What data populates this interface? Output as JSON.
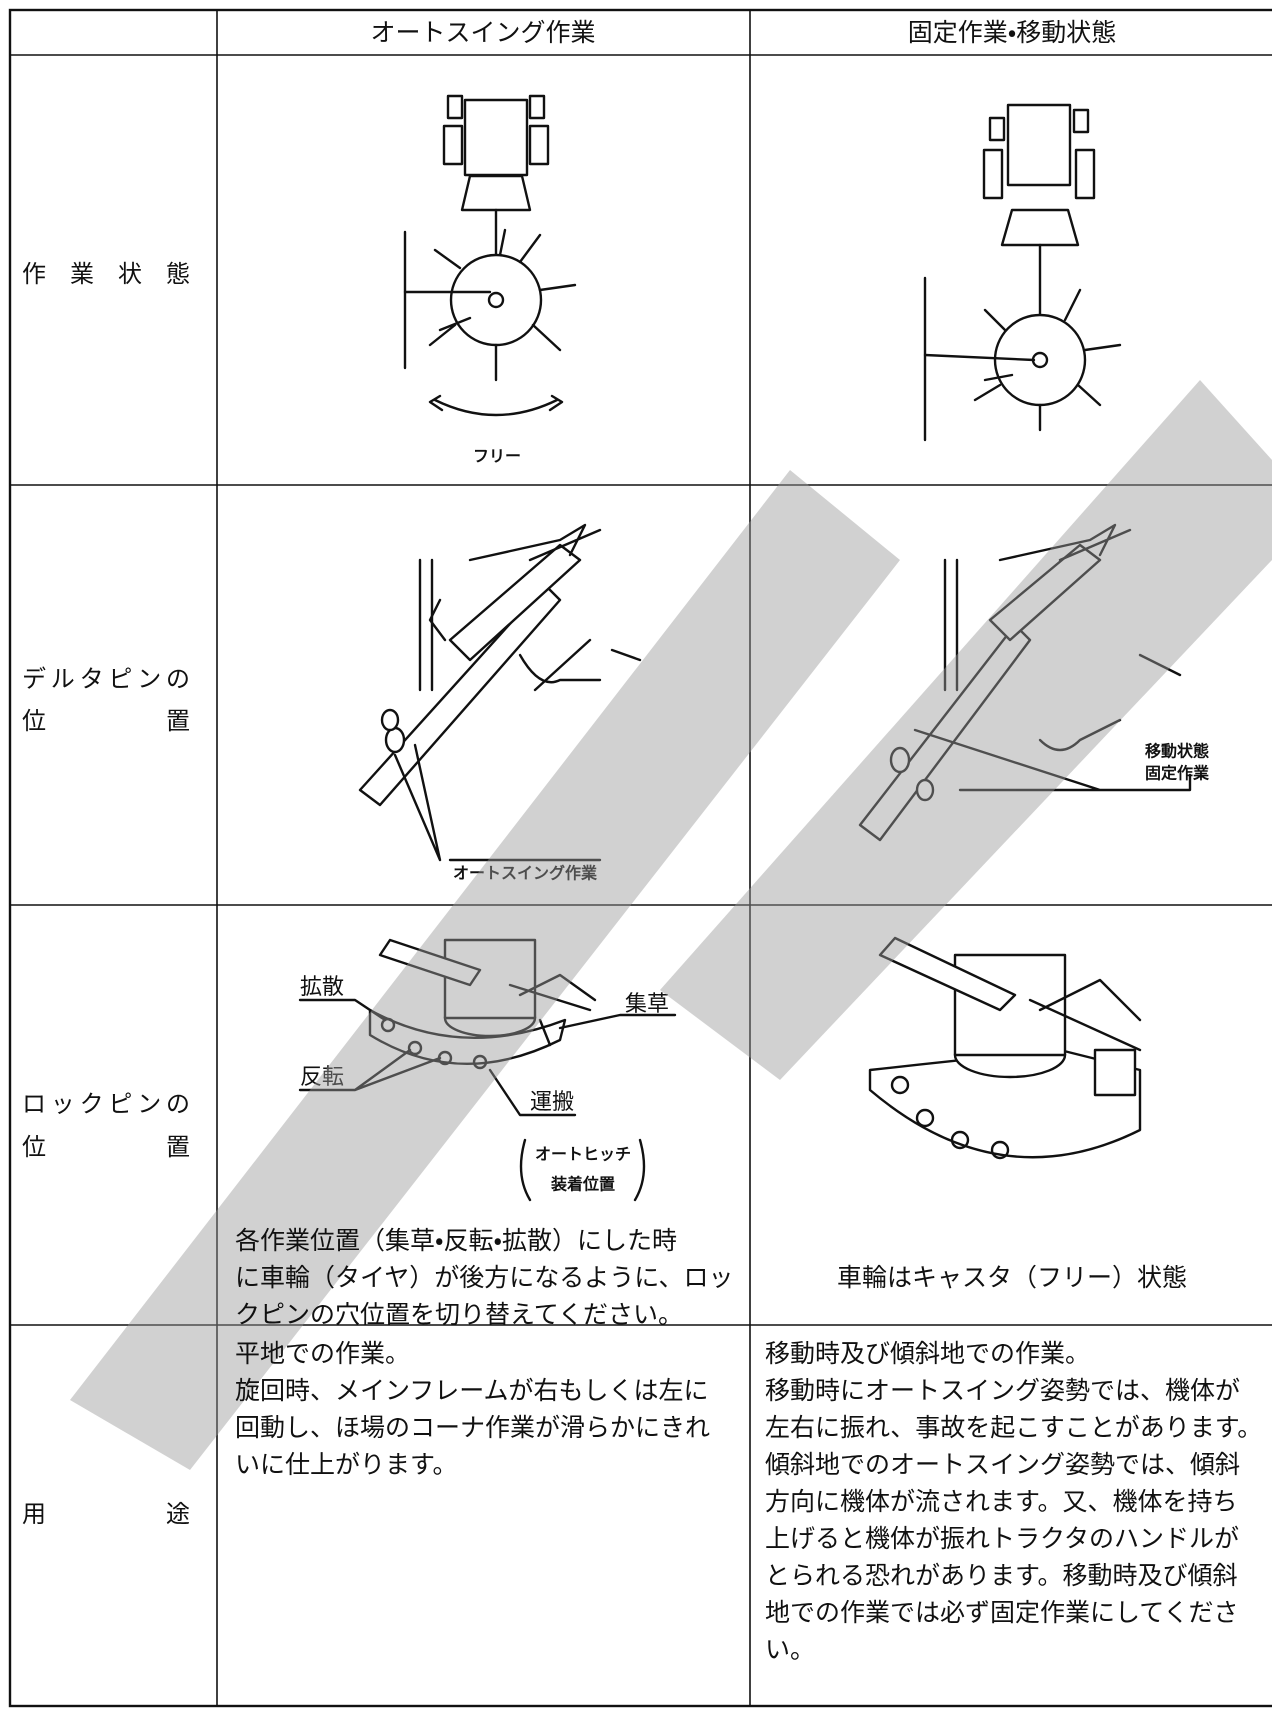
{
  "table": {
    "headers": [
      "オートスイング作業",
      "固定作業・移動状態"
    ],
    "rows": [
      {
        "label": [
          "作業状態"
        ],
        "auto": {
          "figure_labels": [
            "フリー"
          ]
        }
      },
      {
        "label": [
          "デルタピンの",
          "位置"
        ],
        "auto": {
          "figure_labels": [
            "オートスイング作業"
          ]
        },
        "fixed": {
          "figure_labels": [
            "移動状態",
            "固定作業"
          ]
        }
      },
      {
        "label": [
          "ロックピンの",
          "位置"
        ],
        "auto": {
          "figure_labels": [
            "拡散",
            "集草",
            "反転",
            "運搬",
            "オートヒッチ",
            "装着位置"
          ],
          "text": [
            "各作業位置（集草・反転・拡散）にした時",
            "に車輪（タイヤ）が後方になるように、ロッ",
            "クピンの穴位置を切り替えてください。"
          ]
        },
        "fixed": {
          "text": [
            "車輪はキャスタ（フリー）状態"
          ]
        }
      },
      {
        "label": [
          "用途"
        ],
        "auto": {
          "text": [
            "平地での作業。",
            "旋回時、メインフレームが右もしくは左に",
            "回動し、ほ場のコーナ作業が滑らかにきれ",
            "いに仕上がります。"
          ]
        },
        "fixed": {
          "text": [
            "移動時及び傾斜地での作業。",
            "移動時にオートスイング姿勢では、機体が",
            "左右に振れ、事故を起こすことがあります。",
            "傾斜地でのオートスイング姿勢では、傾斜",
            "方向に機体が流されます。又、機体を持ち",
            "上げると機体が振れトラクタのハンドルが",
            "とられる恐れがあります。移動時及び傾斜",
            "地での作業では必ず固定作業にしてくださ",
            "い。"
          ]
        }
      }
    ]
  }
}
